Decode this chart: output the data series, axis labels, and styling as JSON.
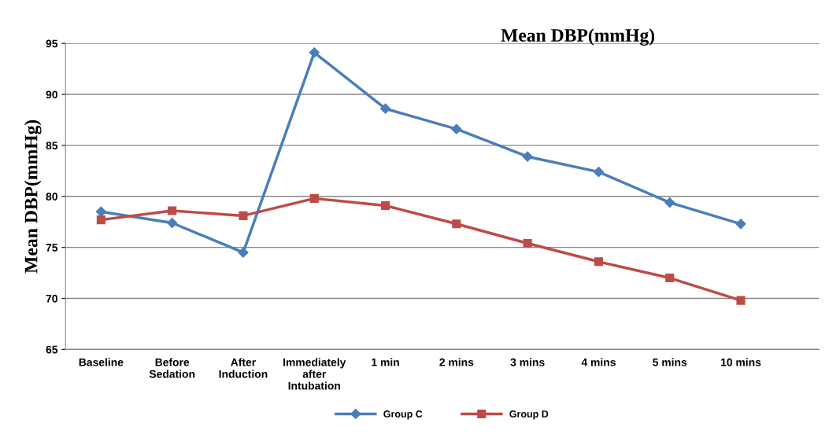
{
  "chart_data": {
    "type": "line",
    "title": "Mean DBP(mmHg)",
    "ylabel": "Mean DBP(mmHg)",
    "categories": [
      "Baseline",
      "Before\nSedation",
      "After\nInduction",
      "Immediately\nafter\nIntubation",
      "1 min",
      "2 mins",
      "3 mins",
      "4 mins",
      "5 mins",
      "10 mins"
    ],
    "series": [
      {
        "name": "Group C",
        "color": "#4a7ebb",
        "marker": "diamond",
        "values": [
          78.5,
          77.4,
          74.5,
          94.1,
          88.6,
          86.6,
          83.9,
          82.4,
          79.4,
          77.3
        ]
      },
      {
        "name": "Group D",
        "color": "#be4b48",
        "marker": "square",
        "values": [
          77.7,
          78.6,
          78.1,
          79.8,
          79.1,
          77.3,
          75.4,
          73.6,
          72.0,
          69.8
        ]
      }
    ],
    "ylim": [
      65,
      95
    ],
    "yticks": [
      65,
      70,
      75,
      80,
      85,
      90,
      95
    ],
    "grid": "y",
    "legend": "bottom",
    "line_style": "solid"
  }
}
